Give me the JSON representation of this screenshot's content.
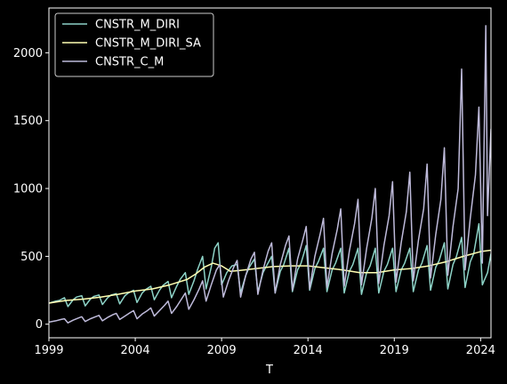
{
  "chart_data": {
    "type": "line",
    "title": "",
    "xlabel": "T",
    "ylabel": "",
    "xlim": [
      1999.0,
      2024.6
    ],
    "ylim": [
      -100,
      2330
    ],
    "x_ticks": [
      {
        "value": 1999,
        "label": "1999"
      },
      {
        "value": 2004,
        "label": "2004"
      },
      {
        "value": 2009,
        "label": "2009"
      },
      {
        "value": 2014,
        "label": "2014"
      },
      {
        "value": 2019,
        "label": "2019"
      },
      {
        "value": 2024,
        "label": "2024"
      }
    ],
    "y_ticks": [
      {
        "value": 0,
        "label": "0"
      },
      {
        "value": 500,
        "label": "500"
      },
      {
        "value": 1000,
        "label": "1000"
      },
      {
        "value": 1500,
        "label": "1500"
      },
      {
        "value": 2000,
        "label": "2000"
      }
    ],
    "grid": false,
    "legend_position": "top-left",
    "series": [
      {
        "name": "CNSTR_M_DIRI",
        "color": "#8dd3c7",
        "points": [
          [
            1999.0,
            155
          ],
          [
            1999.4,
            170
          ],
          [
            1999.6,
            175
          ],
          [
            1999.9,
            195
          ],
          [
            2000.1,
            130
          ],
          [
            2000.4,
            180
          ],
          [
            2000.6,
            200
          ],
          [
            2000.9,
            210
          ],
          [
            2001.1,
            135
          ],
          [
            2001.4,
            185
          ],
          [
            2001.6,
            205
          ],
          [
            2001.9,
            215
          ],
          [
            2002.1,
            145
          ],
          [
            2002.4,
            195
          ],
          [
            2002.6,
            215
          ],
          [
            2002.9,
            225
          ],
          [
            2003.1,
            150
          ],
          [
            2003.4,
            210
          ],
          [
            2003.6,
            230
          ],
          [
            2003.9,
            250
          ],
          [
            2004.1,
            160
          ],
          [
            2004.4,
            230
          ],
          [
            2004.6,
            255
          ],
          [
            2004.9,
            280
          ],
          [
            2005.1,
            180
          ],
          [
            2005.4,
            250
          ],
          [
            2005.6,
            285
          ],
          [
            2005.9,
            315
          ],
          [
            2006.1,
            195
          ],
          [
            2006.4,
            280
          ],
          [
            2006.6,
            330
          ],
          [
            2006.9,
            380
          ],
          [
            2007.1,
            220
          ],
          [
            2007.4,
            320
          ],
          [
            2007.6,
            400
          ],
          [
            2007.9,
            500
          ],
          [
            2008.1,
            260
          ],
          [
            2008.4,
            420
          ],
          [
            2008.6,
            560
          ],
          [
            2008.8,
            600
          ],
          [
            2009.0,
            290
          ],
          [
            2009.3,
            380
          ],
          [
            2009.6,
            430
          ],
          [
            2009.9,
            440
          ],
          [
            2010.1,
            230
          ],
          [
            2010.4,
            360
          ],
          [
            2010.6,
            420
          ],
          [
            2010.9,
            480
          ],
          [
            2011.1,
            240
          ],
          [
            2011.4,
            380
          ],
          [
            2011.6,
            430
          ],
          [
            2011.9,
            500
          ],
          [
            2012.1,
            230
          ],
          [
            2012.4,
            390
          ],
          [
            2012.6,
            440
          ],
          [
            2012.9,
            560
          ],
          [
            2013.1,
            240
          ],
          [
            2013.4,
            400
          ],
          [
            2013.6,
            450
          ],
          [
            2013.9,
            580
          ],
          [
            2014.1,
            250
          ],
          [
            2014.4,
            410
          ],
          [
            2014.6,
            460
          ],
          [
            2014.9,
            560
          ],
          [
            2015.1,
            240
          ],
          [
            2015.4,
            400
          ],
          [
            2015.6,
            450
          ],
          [
            2015.9,
            560
          ],
          [
            2016.1,
            230
          ],
          [
            2016.4,
            390
          ],
          [
            2016.6,
            440
          ],
          [
            2016.9,
            560
          ],
          [
            2017.1,
            220
          ],
          [
            2017.4,
            380
          ],
          [
            2017.6,
            430
          ],
          [
            2017.9,
            560
          ],
          [
            2018.1,
            230
          ],
          [
            2018.4,
            390
          ],
          [
            2018.6,
            440
          ],
          [
            2018.9,
            560
          ],
          [
            2019.1,
            240
          ],
          [
            2019.4,
            400
          ],
          [
            2019.6,
            450
          ],
          [
            2019.9,
            560
          ],
          [
            2020.1,
            240
          ],
          [
            2020.4,
            400
          ],
          [
            2020.6,
            450
          ],
          [
            2020.9,
            580
          ],
          [
            2021.1,
            250
          ],
          [
            2021.4,
            420
          ],
          [
            2021.6,
            470
          ],
          [
            2021.9,
            600
          ],
          [
            2022.1,
            260
          ],
          [
            2022.4,
            440
          ],
          [
            2022.6,
            500
          ],
          [
            2022.9,
            640
          ],
          [
            2023.1,
            270
          ],
          [
            2023.4,
            460
          ],
          [
            2023.6,
            520
          ],
          [
            2023.9,
            740
          ],
          [
            2024.1,
            290
          ],
          [
            2024.4,
            380
          ],
          [
            2024.6,
            520
          ]
        ]
      },
      {
        "name": "CNSTR_M_DIRI_SA",
        "color": "#ffffb3",
        "points": [
          [
            1999.0,
            155
          ],
          [
            2000.0,
            175
          ],
          [
            2001.0,
            185
          ],
          [
            2002.0,
            200
          ],
          [
            2003.0,
            220
          ],
          [
            2004.0,
            245
          ],
          [
            2005.0,
            260
          ],
          [
            2006.0,
            290
          ],
          [
            2007.0,
            330
          ],
          [
            2007.5,
            370
          ],
          [
            2008.0,
            420
          ],
          [
            2008.5,
            450
          ],
          [
            2009.0,
            430
          ],
          [
            2009.5,
            390
          ],
          [
            2010.0,
            395
          ],
          [
            2011.0,
            410
          ],
          [
            2012.0,
            425
          ],
          [
            2013.0,
            430
          ],
          [
            2014.0,
            430
          ],
          [
            2015.0,
            415
          ],
          [
            2016.0,
            400
          ],
          [
            2017.0,
            380
          ],
          [
            2018.0,
            380
          ],
          [
            2019.0,
            400
          ],
          [
            2020.0,
            410
          ],
          [
            2021.0,
            430
          ],
          [
            2022.0,
            460
          ],
          [
            2023.0,
            500
          ],
          [
            2024.0,
            535
          ],
          [
            2024.6,
            545
          ]
        ]
      },
      {
        "name": "CNSTR_C_M",
        "color": "#bebada",
        "points": [
          [
            1999.0,
            15
          ],
          [
            1999.4,
            25
          ],
          [
            1999.7,
            35
          ],
          [
            1999.9,
            40
          ],
          [
            2000.1,
            10
          ],
          [
            2000.4,
            30
          ],
          [
            2000.7,
            45
          ],
          [
            2000.9,
            55
          ],
          [
            2001.1,
            20
          ],
          [
            2001.4,
            40
          ],
          [
            2001.7,
            55
          ],
          [
            2001.9,
            65
          ],
          [
            2002.1,
            25
          ],
          [
            2002.4,
            50
          ],
          [
            2002.7,
            70
          ],
          [
            2002.9,
            80
          ],
          [
            2003.1,
            35
          ],
          [
            2003.4,
            60
          ],
          [
            2003.7,
            85
          ],
          [
            2003.9,
            100
          ],
          [
            2004.1,
            40
          ],
          [
            2004.4,
            75
          ],
          [
            2004.7,
            100
          ],
          [
            2004.9,
            120
          ],
          [
            2005.1,
            60
          ],
          [
            2005.4,
            100
          ],
          [
            2005.7,
            140
          ],
          [
            2005.9,
            170
          ],
          [
            2006.1,
            80
          ],
          [
            2006.4,
            130
          ],
          [
            2006.7,
            190
          ],
          [
            2006.9,
            230
          ],
          [
            2007.1,
            110
          ],
          [
            2007.4,
            180
          ],
          [
            2007.7,
            260
          ],
          [
            2007.9,
            320
          ],
          [
            2008.1,
            170
          ],
          [
            2008.4,
            290
          ],
          [
            2008.7,
            400
          ],
          [
            2008.9,
            440
          ],
          [
            2009.1,
            200
          ],
          [
            2009.4,
            320
          ],
          [
            2009.7,
            420
          ],
          [
            2009.9,
            470
          ],
          [
            2010.1,
            200
          ],
          [
            2010.4,
            360
          ],
          [
            2010.7,
            480
          ],
          [
            2010.9,
            530
          ],
          [
            2011.1,
            220
          ],
          [
            2011.4,
            400
          ],
          [
            2011.7,
            540
          ],
          [
            2011.9,
            600
          ],
          [
            2012.1,
            230
          ],
          [
            2012.4,
            440
          ],
          [
            2012.7,
            580
          ],
          [
            2012.9,
            650
          ],
          [
            2013.1,
            250
          ],
          [
            2013.4,
            480
          ],
          [
            2013.7,
            620
          ],
          [
            2013.9,
            720
          ],
          [
            2014.1,
            260
          ],
          [
            2014.4,
            500
          ],
          [
            2014.7,
            660
          ],
          [
            2014.9,
            780
          ],
          [
            2015.1,
            270
          ],
          [
            2015.4,
            520
          ],
          [
            2015.7,
            700
          ],
          [
            2015.9,
            850
          ],
          [
            2016.1,
            280
          ],
          [
            2016.4,
            540
          ],
          [
            2016.7,
            740
          ],
          [
            2016.9,
            920
          ],
          [
            2017.1,
            290
          ],
          [
            2017.4,
            560
          ],
          [
            2017.7,
            780
          ],
          [
            2017.9,
            1000
          ],
          [
            2018.1,
            300
          ],
          [
            2018.4,
            580
          ],
          [
            2018.7,
            800
          ],
          [
            2018.9,
            1050
          ],
          [
            2019.1,
            310
          ],
          [
            2019.4,
            600
          ],
          [
            2019.7,
            830
          ],
          [
            2019.9,
            1120
          ],
          [
            2020.1,
            320
          ],
          [
            2020.4,
            620
          ],
          [
            2020.7,
            850
          ],
          [
            2020.9,
            1180
          ],
          [
            2021.1,
            340
          ],
          [
            2021.4,
            660
          ],
          [
            2021.7,
            920
          ],
          [
            2021.9,
            1300
          ],
          [
            2022.1,
            360
          ],
          [
            2022.4,
            720
          ],
          [
            2022.7,
            1000
          ],
          [
            2022.9,
            1880
          ],
          [
            2023.1,
            400
          ],
          [
            2023.4,
            780
          ],
          [
            2023.7,
            1100
          ],
          [
            2023.9,
            1600
          ],
          [
            2024.1,
            450
          ],
          [
            2024.3,
            2200
          ],
          [
            2024.4,
            800
          ],
          [
            2024.6,
            1440
          ]
        ]
      }
    ]
  }
}
